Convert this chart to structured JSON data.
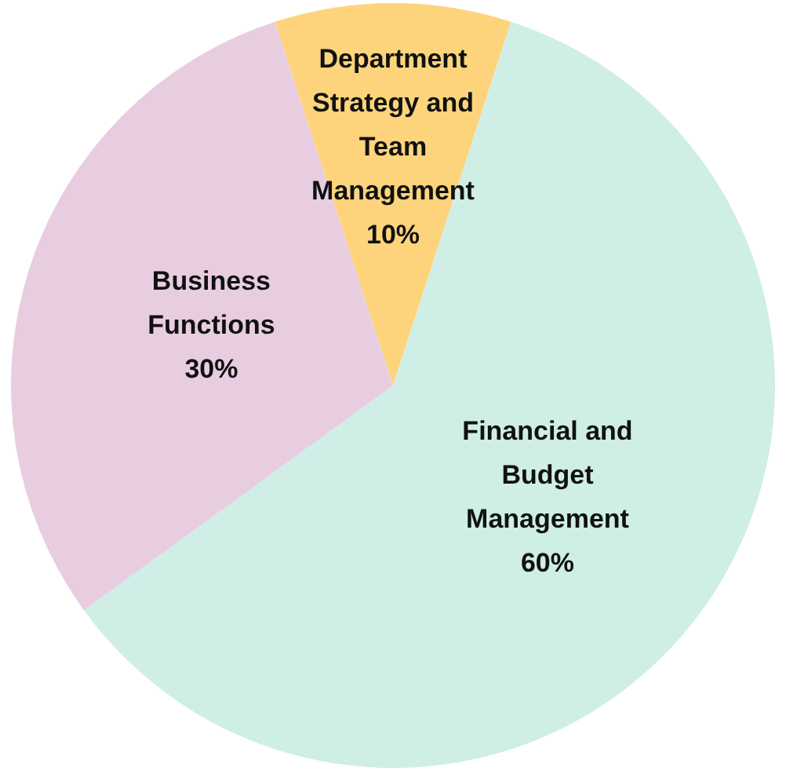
{
  "chart_data": {
    "type": "pie",
    "categories": [
      "Department Strategy and Team Management",
      "Financial and Budget Management",
      "Business Functions"
    ],
    "values": [
      10,
      60,
      30
    ],
    "colors": [
      "#fdd47c",
      "#cfeee6",
      "#e8cde0"
    ],
    "value_labels": [
      "10%",
      "60%",
      "30%"
    ],
    "legend": false
  }
}
